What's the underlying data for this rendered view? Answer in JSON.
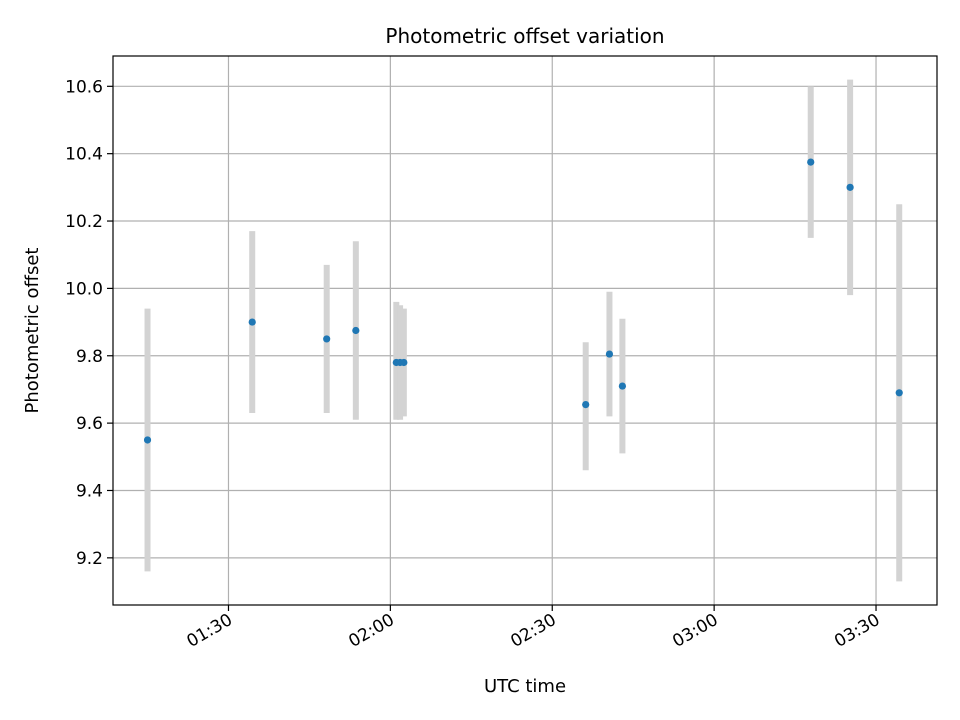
{
  "chart_data": {
    "type": "scatter",
    "title": "Photometric offset variation",
    "xlabel": "UTC time",
    "ylabel": "Photometric offset",
    "x_ticks": [
      "01:30",
      "02:00",
      "02:30",
      "03:00",
      "03:30"
    ],
    "x_tick_minutes": [
      90,
      120,
      150,
      180,
      210
    ],
    "xlim_minutes": [
      68.6,
      221.3
    ],
    "y_ticks": [
      "9.2",
      "9.4",
      "9.6",
      "9.8",
      "10.0",
      "10.2",
      "10.4",
      "10.6"
    ],
    "ylim": [
      9.06,
      10.69
    ],
    "grid": true,
    "point_color": "#1f77b4",
    "errorbar_color": "#d3d3d3",
    "points": [
      {
        "time": "01:15",
        "t_min": 75.0,
        "y": 9.55,
        "ylow": 9.16,
        "yhigh": 9.94
      },
      {
        "time": "01:34",
        "t_min": 94.4,
        "y": 9.9,
        "ylow": 9.63,
        "yhigh": 10.17
      },
      {
        "time": "01:48",
        "t_min": 108.2,
        "y": 9.85,
        "ylow": 9.63,
        "yhigh": 10.07
      },
      {
        "time": "01:53",
        "t_min": 113.6,
        "y": 9.875,
        "ylow": 9.61,
        "yhigh": 10.14
      },
      {
        "time": "02:01",
        "t_min": 121.1,
        "y": 9.78,
        "ylow": 9.61,
        "yhigh": 9.96
      },
      {
        "time": "02:02",
        "t_min": 121.8,
        "y": 9.78,
        "ylow": 9.61,
        "yhigh": 9.95
      },
      {
        "time": "02:02",
        "t_min": 122.5,
        "y": 9.78,
        "ylow": 9.62,
        "yhigh": 9.94
      },
      {
        "time": "02:36",
        "t_min": 156.2,
        "y": 9.655,
        "ylow": 9.46,
        "yhigh": 9.84
      },
      {
        "time": "02:40",
        "t_min": 160.6,
        "y": 9.805,
        "ylow": 9.62,
        "yhigh": 9.99
      },
      {
        "time": "02:43",
        "t_min": 163.0,
        "y": 9.71,
        "ylow": 9.51,
        "yhigh": 9.91
      },
      {
        "time": "03:18",
        "t_min": 197.9,
        "y": 10.375,
        "ylow": 10.15,
        "yhigh": 10.6
      },
      {
        "time": "03:25",
        "t_min": 205.2,
        "y": 10.3,
        "ylow": 9.98,
        "yhigh": 10.62
      },
      {
        "time": "03:34",
        "t_min": 214.3,
        "y": 9.69,
        "ylow": 9.13,
        "yhigh": 10.25
      }
    ]
  }
}
